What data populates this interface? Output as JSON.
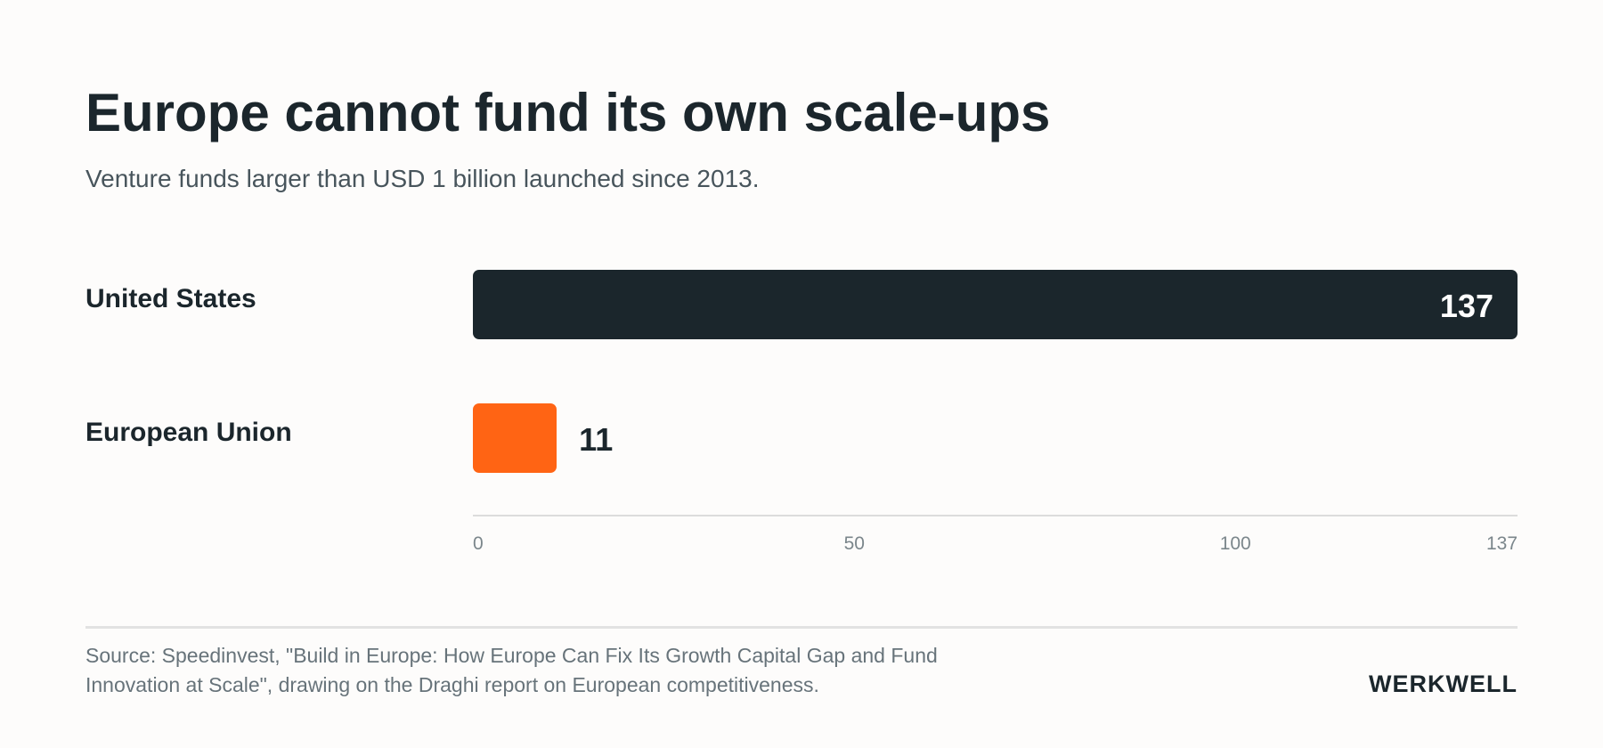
{
  "chart_data": {
    "type": "bar",
    "orientation": "horizontal",
    "title": "Europe cannot fund its own scale-ups",
    "subtitle": "Venture funds larger than USD 1 billion launched since 2013.",
    "categories": [
      "United States",
      "European Union"
    ],
    "values": [
      137,
      11
    ],
    "colors": [
      "#1b262c",
      "#ff6414"
    ],
    "xlim": [
      0,
      137
    ],
    "x_ticks": [
      0,
      50,
      100,
      137
    ],
    "grid": false,
    "legend": "none"
  },
  "footer": {
    "source": "Source: Speedinvest, \"Build in Europe: How Europe Can Fix Its Growth Capital Gap and Fund Innovation at Scale\", drawing on the Draghi report on European competitiveness.",
    "brand": "WERKWELL"
  }
}
